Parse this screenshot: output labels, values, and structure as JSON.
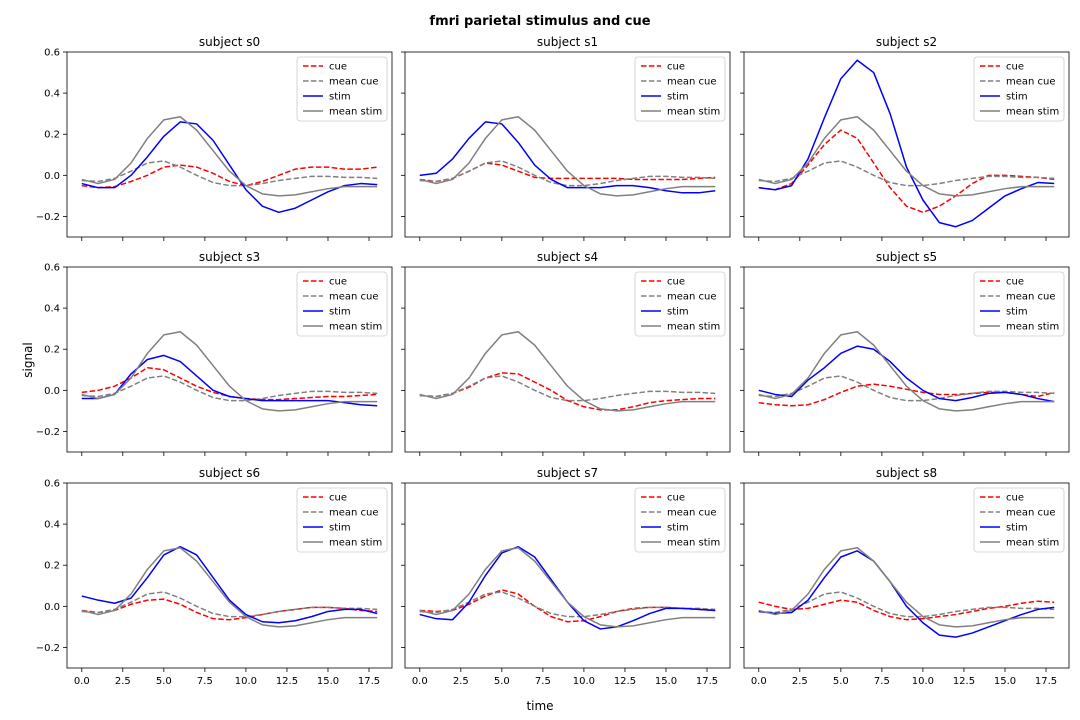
{
  "chart_data": {
    "type": "line",
    "title": "fmri parietal stimulus and cue",
    "xlabel": "time",
    "ylabel": "signal",
    "xlim": [
      -0.9,
      18.9
    ],
    "ylim": [
      -0.3,
      0.6
    ],
    "xticks": [
      0.0,
      2.5,
      5.0,
      7.5,
      10.0,
      12.5,
      15.0,
      17.5
    ],
    "xtick_labels": [
      "0.0",
      "2.5",
      "5.0",
      "7.5",
      "10.0",
      "12.5",
      "15.0",
      "17.5"
    ],
    "yticks": [
      -0.2,
      0.0,
      0.2,
      0.4,
      0.6
    ],
    "ytick_labels": [
      "−0.2",
      "0.0",
      "0.2",
      "0.4",
      "0.6"
    ],
    "x": [
      0,
      1,
      2,
      3,
      4,
      5,
      6,
      7,
      8,
      9,
      10,
      11,
      12,
      13,
      14,
      15,
      16,
      17,
      18
    ],
    "grid": false,
    "legend_position": "upper right",
    "legend": [
      "cue",
      "mean cue",
      "stim",
      "mean stim"
    ],
    "series_styles": {
      "cue": {
        "color": "#ff0000",
        "dash": true
      },
      "mean cue": {
        "color": "#808080",
        "dash": true
      },
      "stim": {
        "color": "#0000ff",
        "dash": false
      },
      "mean stim": {
        "color": "#808080",
        "dash": false
      }
    },
    "mean_cue": [
      -0.025,
      -0.03,
      -0.015,
      0.02,
      0.06,
      0.07,
      0.04,
      0.0,
      -0.035,
      -0.05,
      -0.05,
      -0.04,
      -0.025,
      -0.015,
      -0.005,
      -0.005,
      -0.01,
      -0.01,
      -0.015
    ],
    "mean_stim": [
      -0.02,
      -0.04,
      -0.02,
      0.06,
      0.18,
      0.27,
      0.285,
      0.22,
      0.12,
      0.02,
      -0.05,
      -0.09,
      -0.1,
      -0.095,
      -0.08,
      -0.065,
      -0.055,
      -0.055,
      -0.055
    ],
    "panels": [
      {
        "title": "subject s0",
        "cue": [
          -0.05,
          -0.06,
          -0.055,
          -0.03,
          0.0,
          0.04,
          0.05,
          0.04,
          0.01,
          -0.03,
          -0.05,
          -0.03,
          0.0,
          0.03,
          0.04,
          0.04,
          0.03,
          0.03,
          0.04
        ],
        "stim": [
          -0.04,
          -0.06,
          -0.06,
          0.0,
          0.09,
          0.19,
          0.26,
          0.25,
          0.17,
          0.05,
          -0.07,
          -0.15,
          -0.18,
          -0.16,
          -0.12,
          -0.08,
          -0.05,
          -0.04,
          -0.045
        ]
      },
      {
        "title": "subject s1",
        "cue": [
          -0.02,
          -0.03,
          -0.015,
          0.02,
          0.06,
          0.05,
          0.02,
          -0.01,
          -0.015,
          -0.015,
          -0.015,
          -0.015,
          -0.015,
          -0.02,
          -0.02,
          -0.02,
          -0.02,
          -0.015,
          -0.01
        ],
        "stim": [
          0.0,
          0.01,
          0.08,
          0.18,
          0.26,
          0.25,
          0.16,
          0.05,
          -0.02,
          -0.06,
          -0.06,
          -0.06,
          -0.05,
          -0.05,
          -0.06,
          -0.075,
          -0.085,
          -0.085,
          -0.075
        ]
      },
      {
        "title": "subject s2",
        "cue": [
          -0.06,
          -0.07,
          -0.04,
          0.05,
          0.15,
          0.22,
          0.18,
          0.06,
          -0.06,
          -0.15,
          -0.18,
          -0.15,
          -0.1,
          -0.04,
          0.0,
          0.0,
          -0.005,
          -0.01,
          -0.02
        ],
        "stim": [
          -0.06,
          -0.07,
          -0.05,
          0.08,
          0.28,
          0.47,
          0.56,
          0.5,
          0.3,
          0.04,
          -0.12,
          -0.23,
          -0.25,
          -0.22,
          -0.16,
          -0.1,
          -0.065,
          -0.035,
          -0.04
        ]
      },
      {
        "title": "subject s3",
        "cue": [
          -0.01,
          0.0,
          0.02,
          0.06,
          0.11,
          0.1,
          0.06,
          0.02,
          -0.01,
          -0.03,
          -0.04,
          -0.045,
          -0.045,
          -0.04,
          -0.035,
          -0.03,
          -0.03,
          -0.025,
          -0.02
        ],
        "stim": [
          -0.04,
          -0.04,
          -0.02,
          0.08,
          0.15,
          0.17,
          0.14,
          0.07,
          0.0,
          -0.03,
          -0.04,
          -0.05,
          -0.05,
          -0.05,
          -0.05,
          -0.05,
          -0.06,
          -0.07,
          -0.075
        ]
      },
      {
        "title": "subject s4",
        "cue": [
          -0.025,
          -0.03,
          -0.015,
          0.015,
          0.06,
          0.085,
          0.08,
          0.04,
          0.0,
          -0.05,
          -0.08,
          -0.095,
          -0.095,
          -0.08,
          -0.06,
          -0.05,
          -0.045,
          -0.04,
          -0.04
        ]
      },
      {
        "title": "subject s5",
        "cue": [
          -0.06,
          -0.07,
          -0.075,
          -0.07,
          -0.045,
          -0.01,
          0.02,
          0.03,
          0.02,
          0.005,
          -0.01,
          -0.02,
          -0.02,
          -0.015,
          -0.01,
          -0.01,
          -0.02,
          -0.03,
          -0.01
        ],
        "stim": [
          0.0,
          -0.02,
          -0.03,
          0.05,
          0.11,
          0.18,
          0.215,
          0.2,
          0.14,
          0.06,
          0.0,
          -0.04,
          -0.05,
          -0.035,
          -0.015,
          -0.01,
          -0.02,
          -0.04,
          -0.055
        ]
      },
      {
        "title": "subject s6",
        "cue": [
          -0.02,
          -0.03,
          -0.02,
          0.01,
          0.03,
          0.035,
          0.01,
          -0.03,
          -0.06,
          -0.065,
          -0.055,
          -0.04,
          -0.025,
          -0.015,
          -0.005,
          -0.005,
          -0.01,
          -0.02,
          -0.025
        ],
        "stim": [
          0.05,
          0.03,
          0.015,
          0.04,
          0.14,
          0.25,
          0.29,
          0.25,
          0.14,
          0.03,
          -0.04,
          -0.075,
          -0.08,
          -0.07,
          -0.05,
          -0.025,
          -0.015,
          -0.015,
          -0.035
        ]
      },
      {
        "title": "subject s7",
        "cue": [
          -0.02,
          -0.025,
          -0.02,
          0.01,
          0.05,
          0.08,
          0.06,
          0.0,
          -0.05,
          -0.075,
          -0.07,
          -0.05,
          -0.025,
          -0.01,
          -0.005,
          -0.005,
          -0.01,
          -0.015,
          -0.02
        ],
        "stim": [
          -0.04,
          -0.06,
          -0.065,
          0.02,
          0.15,
          0.26,
          0.29,
          0.24,
          0.13,
          0.02,
          -0.07,
          -0.11,
          -0.1,
          -0.07,
          -0.035,
          -0.01,
          -0.01,
          -0.015,
          -0.02
        ]
      },
      {
        "title": "subject s8",
        "cue": [
          0.02,
          0.0,
          -0.015,
          -0.01,
          0.01,
          0.03,
          0.02,
          -0.02,
          -0.05,
          -0.065,
          -0.06,
          -0.05,
          -0.04,
          -0.025,
          -0.01,
          0.0,
          0.015,
          0.025,
          0.02
        ],
        "stim": [
          -0.025,
          -0.035,
          -0.03,
          0.03,
          0.14,
          0.24,
          0.27,
          0.22,
          0.12,
          0.0,
          -0.08,
          -0.14,
          -0.15,
          -0.13,
          -0.1,
          -0.07,
          -0.04,
          -0.015,
          -0.005
        ]
      }
    ]
  }
}
